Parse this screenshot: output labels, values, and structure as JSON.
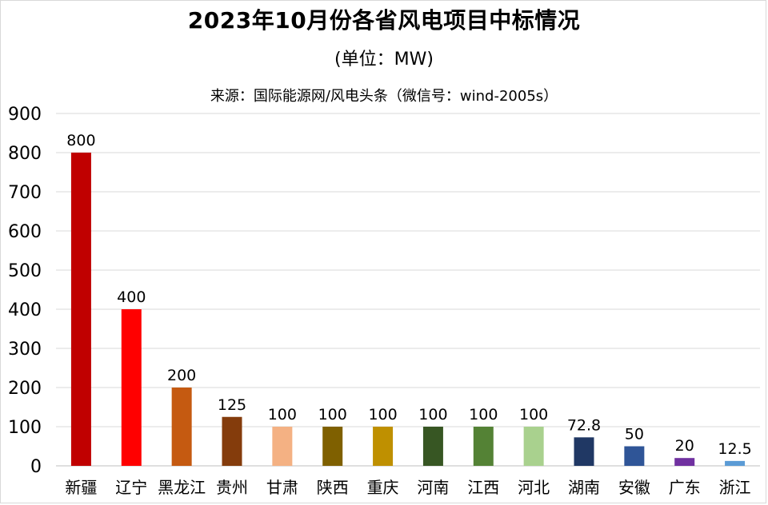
{
  "chart_data": {
    "type": "bar",
    "title": "2023年10月份各省风电项目中标情况",
    "subtitle": "(单位：MW)",
    "source": "来源：国际能源网/风电头条（微信号：wind-2005s）",
    "categories": [
      "新疆",
      "辽宁",
      "黑龙江",
      "贵州",
      "甘肃",
      "陕西",
      "重庆",
      "河南",
      "江西",
      "河北",
      "湖南",
      "安徽",
      "广东",
      "浙江"
    ],
    "values": [
      800,
      400,
      200,
      125,
      100,
      100,
      100,
      100,
      100,
      100,
      72.8,
      50,
      20,
      12.5
    ],
    "data_labels": [
      "800",
      "400",
      "200",
      "125",
      "100",
      "100",
      "100",
      "100",
      "100",
      "100",
      "72.8",
      "50",
      "20",
      "12.5"
    ],
    "bar_colors": [
      "#c00000",
      "#ff0000",
      "#c55a11",
      "#843c0c",
      "#f4b183",
      "#7f6000",
      "#bf9000",
      "#375623",
      "#548235",
      "#a9d18e",
      "#203864",
      "#2f5597",
      "#7030a0",
      "#5b9bd5"
    ],
    "ylim": [
      0,
      900
    ],
    "yticks": [
      0,
      100,
      200,
      300,
      400,
      500,
      600,
      700,
      800,
      900
    ],
    "grid": true,
    "xlabel": "",
    "ylabel": ""
  }
}
